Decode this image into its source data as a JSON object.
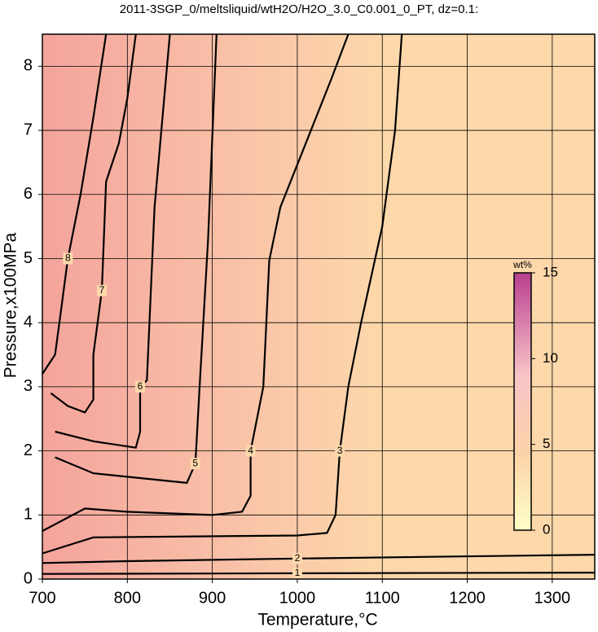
{
  "chart_data": {
    "type": "contour",
    "title": "2011-3SGP_0/meltsliquid/wtH2O/H2O_3.0_C0.001_0_PT, dz=0.1:",
    "x_label": "Temperature,°C",
    "y_label": "Pressure,x100MPa",
    "xlim": [
      700,
      1350
    ],
    "ylim": [
      0,
      8.5
    ],
    "xticks": [
      700,
      800,
      900,
      1000,
      1100,
      1200,
      1300
    ],
    "yticks": [
      0,
      1,
      2,
      3,
      4,
      5,
      6,
      7,
      8
    ],
    "grid": true,
    "contours": [
      {
        "level": 1,
        "x": [
          700,
          1000,
          1350
        ],
        "y": [
          0.08,
          0.09,
          0.1
        ]
      },
      {
        "level": 2,
        "x": [
          700,
          800,
          1000,
          1350
        ],
        "y": [
          0.25,
          0.28,
          0.32,
          0.38
        ]
      },
      {
        "level": 3,
        "x": [
          700,
          760,
          1000,
          1035,
          1045,
          1050,
          1060,
          1075,
          1100,
          1115,
          1123
        ],
        "y": [
          0.4,
          0.65,
          0.68,
          0.72,
          1.0,
          2.0,
          3.0,
          4.0,
          5.5,
          7.0,
          8.5
        ]
      },
      {
        "level": 4,
        "x": [
          700,
          750,
          800,
          900,
          935,
          945,
          945,
          960,
          967,
          980,
          1010,
          1040,
          1060
        ],
        "y": [
          0.75,
          1.1,
          1.05,
          1.0,
          1.05,
          1.3,
          2.0,
          3.0,
          4.97,
          5.8,
          6.8,
          7.8,
          8.5
        ]
      },
      {
        "level": 5,
        "x": [
          715,
          760,
          870,
          880,
          885,
          895,
          905
        ],
        "y": [
          1.9,
          1.65,
          1.5,
          1.8,
          3.0,
          5.3,
          8.5
        ]
      },
      {
        "level": 6,
        "x": [
          715,
          760,
          810,
          815,
          815,
          823,
          832,
          850
        ],
        "y": [
          2.3,
          2.15,
          2.05,
          2.3,
          3.0,
          3.1,
          5.8,
          8.5
        ]
      },
      {
        "level": 7,
        "x": [
          710,
          730,
          750,
          760,
          760,
          770,
          775,
          790,
          800,
          810
        ],
        "y": [
          2.9,
          2.7,
          2.6,
          2.8,
          3.5,
          4.5,
          6.2,
          6.8,
          7.5,
          8.5
        ]
      },
      {
        "level": 8,
        "x": [
          700,
          715,
          720,
          730,
          745,
          760,
          775
        ],
        "y": [
          3.2,
          3.5,
          4.0,
          5.0,
          6.0,
          7.2,
          8.5
        ]
      }
    ],
    "colorbar": {
      "label": "wt%",
      "lim": [
        0,
        15
      ],
      "ticks": [
        0,
        5,
        10,
        15
      ]
    }
  }
}
